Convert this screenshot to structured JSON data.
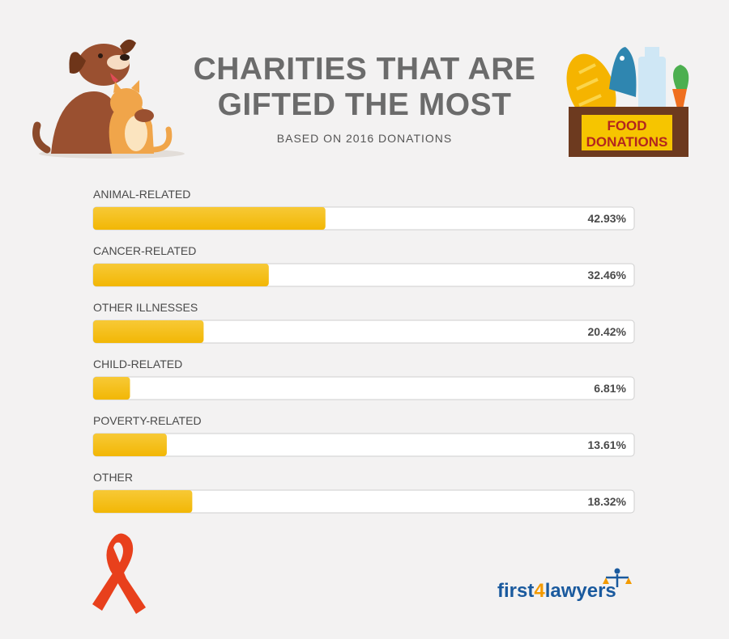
{
  "title_lines": [
    "CHARITIES THAT ARE",
    "GIFTED THE MOST"
  ],
  "subtitle": "BASED ON 2016 DONATIONS",
  "food_sign": [
    "FOOD",
    "DONATIONS"
  ],
  "logo": {
    "part1": "first",
    "part2": "4",
    "part3": "lawyers"
  },
  "colors": {
    "bar_fill": "#f2b705",
    "bar_fill_light": "#f7c936",
    "track": "#ffffff",
    "track_border": "#cfcfcf",
    "label": "#4a4a4a",
    "ribbon": "#e8401c",
    "logo_blue": "#1a5a9e",
    "logo_orange": "#f39a00"
  },
  "chart_data": {
    "type": "bar",
    "orientation": "horizontal",
    "categories": [
      "ANIMAL-RELATED",
      "CANCER-RELATED",
      "OTHER ILLNESSES",
      "CHILD-RELATED",
      "POVERTY-RELATED",
      "OTHER"
    ],
    "values": [
      42.93,
      32.46,
      20.42,
      6.81,
      13.61,
      18.32
    ],
    "value_labels": [
      "42.93%",
      "32.46%",
      "20.42%",
      "6.81%",
      "13.61%",
      "18.32%"
    ],
    "xlim": [
      0,
      100
    ]
  }
}
